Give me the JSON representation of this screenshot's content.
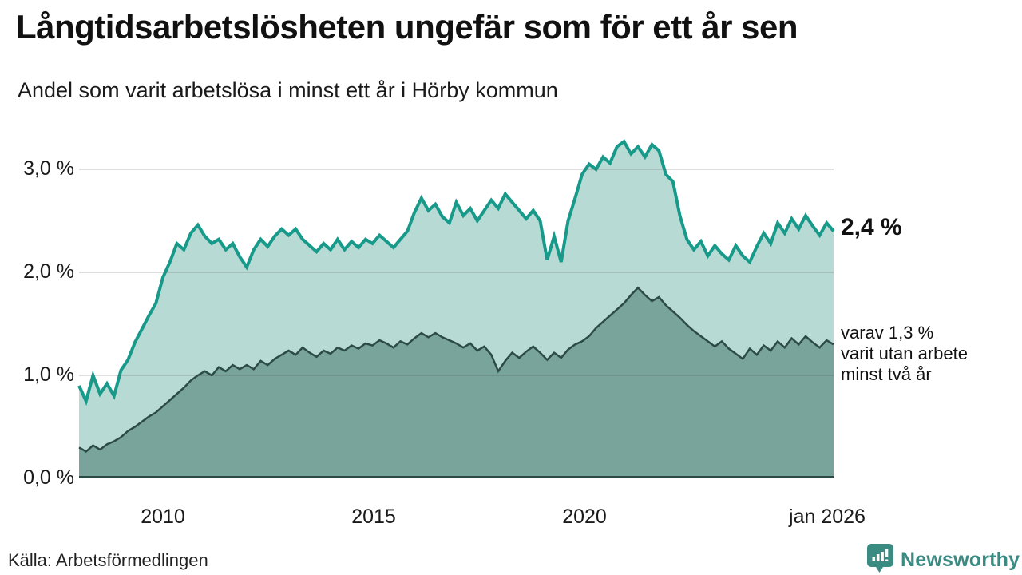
{
  "header": {
    "title": "Långtidsarbetslösheten ungefär som för ett år sen",
    "subtitle": "Andel som varit arbetslösa i minst ett år i Hörby kommun"
  },
  "chart_data": {
    "type": "area",
    "title": "Långtidsarbetslösheten ungefär som för ett år sen",
    "subtitle": "Andel som varit arbetslösa i minst ett år i Hörby kommun",
    "unit": "%",
    "x_start_year": 2008.0,
    "x_end_year": 2026.0,
    "x_step_months": 2,
    "ylim": [
      0,
      3.403
    ],
    "grid": "horizontal",
    "y_tick_values": [
      0.0,
      1.0,
      2.0,
      3.0
    ],
    "y_tick_labels": [
      "0,0 %",
      "1,0 %",
      "2,0 %",
      "3,0 %"
    ],
    "x_tick_years": [
      2010,
      2015,
      2020,
      2026
    ],
    "x_tick_labels": [
      "2010",
      "2015",
      "2020",
      "jan 2026"
    ],
    "series": [
      {
        "name": "Andel som varit arbetslösa i minst ett år",
        "fill": "#b7dbd4",
        "line": "#189a8b",
        "line_width": 4,
        "last_value": 2.4,
        "values": [
          0.9,
          0.75,
          1.0,
          0.82,
          0.92,
          0.8,
          1.05,
          1.15,
          1.32,
          1.45,
          1.58,
          1.7,
          1.95,
          2.1,
          2.28,
          2.22,
          2.38,
          2.46,
          2.35,
          2.28,
          2.32,
          2.22,
          2.28,
          2.15,
          2.05,
          2.22,
          2.32,
          2.25,
          2.35,
          2.42,
          2.36,
          2.42,
          2.32,
          2.26,
          2.2,
          2.28,
          2.22,
          2.32,
          2.22,
          2.3,
          2.24,
          2.32,
          2.28,
          2.36,
          2.3,
          2.24,
          2.32,
          2.4,
          2.58,
          2.72,
          2.6,
          2.66,
          2.54,
          2.48,
          2.68,
          2.55,
          2.62,
          2.5,
          2.6,
          2.7,
          2.62,
          2.76,
          2.68,
          2.6,
          2.52,
          2.6,
          2.5,
          2.12,
          2.35,
          2.1,
          2.5,
          2.72,
          2.95,
          3.05,
          3.0,
          3.12,
          3.06,
          3.22,
          3.27,
          3.15,
          3.22,
          3.12,
          3.24,
          3.18,
          2.95,
          2.88,
          2.55,
          2.32,
          2.22,
          2.3,
          2.16,
          2.26,
          2.18,
          2.12,
          2.26,
          2.16,
          2.1,
          2.25,
          2.38,
          2.28,
          2.48,
          2.38,
          2.52,
          2.42,
          2.55,
          2.45,
          2.36,
          2.48,
          2.4
        ]
      },
      {
        "name": "varav utan arbete minst två år",
        "fill": "#78a49b",
        "line": "#2d4b46",
        "line_width": 2.5,
        "last_value": 1.3,
        "values": [
          0.3,
          0.26,
          0.32,
          0.28,
          0.33,
          0.36,
          0.4,
          0.46,
          0.5,
          0.55,
          0.6,
          0.64,
          0.7,
          0.76,
          0.82,
          0.88,
          0.95,
          1.0,
          1.04,
          1.0,
          1.08,
          1.04,
          1.1,
          1.06,
          1.1,
          1.06,
          1.14,
          1.1,
          1.16,
          1.2,
          1.24,
          1.2,
          1.27,
          1.22,
          1.18,
          1.24,
          1.21,
          1.27,
          1.24,
          1.29,
          1.26,
          1.31,
          1.29,
          1.34,
          1.31,
          1.27,
          1.33,
          1.3,
          1.36,
          1.41,
          1.37,
          1.41,
          1.37,
          1.34,
          1.31,
          1.27,
          1.31,
          1.24,
          1.28,
          1.2,
          1.04,
          1.14,
          1.22,
          1.17,
          1.23,
          1.28,
          1.22,
          1.15,
          1.22,
          1.17,
          1.25,
          1.3,
          1.33,
          1.38,
          1.46,
          1.52,
          1.58,
          1.64,
          1.7,
          1.78,
          1.85,
          1.78,
          1.72,
          1.76,
          1.68,
          1.62,
          1.56,
          1.49,
          1.43,
          1.38,
          1.33,
          1.28,
          1.33,
          1.26,
          1.21,
          1.16,
          1.26,
          1.2,
          1.29,
          1.24,
          1.33,
          1.27,
          1.36,
          1.3,
          1.38,
          1.32,
          1.27,
          1.34,
          1.3
        ]
      }
    ]
  },
  "annotations": {
    "last_value_total": "2,4 %",
    "subset_line1": "varav 1,3 %",
    "subset_line2": "varit utan arbete",
    "subset_line3": "minst två år"
  },
  "footer": {
    "source": "Källa: Arbetsförmedlingen",
    "brand": "Newsworthy",
    "brand_color": "#3a8b81"
  }
}
